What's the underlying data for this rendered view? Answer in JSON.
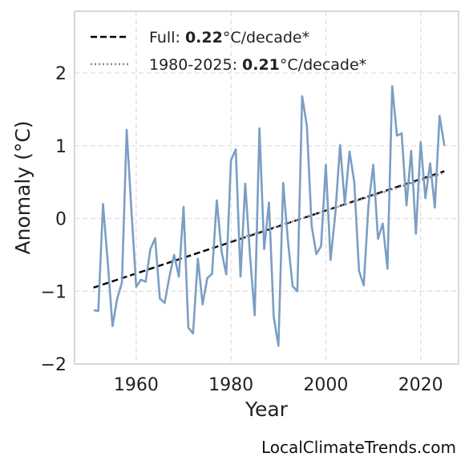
{
  "chart_data": {
    "type": "line",
    "title": "",
    "xlabel": "Year",
    "ylabel": "Anomaly (°C)",
    "xlim": [
      1947,
      2028
    ],
    "ylim": [
      -2,
      2.85
    ],
    "xticks": [
      1960,
      1980,
      2000,
      2020
    ],
    "yticks": [
      -2,
      -1,
      0,
      1,
      2
    ],
    "ytick_labels": [
      "−2",
      "−1",
      "0",
      "1",
      "2"
    ],
    "grid": true,
    "legend_position": "top-left",
    "x": [
      1951,
      1952,
      1953,
      1954,
      1955,
      1956,
      1957,
      1958,
      1959,
      1960,
      1961,
      1962,
      1963,
      1964,
      1965,
      1966,
      1967,
      1968,
      1969,
      1970,
      1971,
      1972,
      1973,
      1974,
      1975,
      1976,
      1977,
      1978,
      1979,
      1980,
      1981,
      1982,
      1983,
      1984,
      1985,
      1986,
      1987,
      1988,
      1989,
      1990,
      1991,
      1992,
      1993,
      1994,
      1995,
      1996,
      1997,
      1998,
      1999,
      2000,
      2001,
      2002,
      2003,
      2004,
      2005,
      2006,
      2007,
      2008,
      2009,
      2010,
      2011,
      2012,
      2013,
      2014,
      2015,
      2016,
      2017,
      2018,
      2019,
      2020,
      2021,
      2022,
      2023,
      2024,
      2025
    ],
    "series": [
      {
        "values": [
          -1.26,
          -1.27,
          0.2,
          -0.6,
          -1.48,
          -1.1,
          -0.88,
          1.22,
          0.1,
          -0.94,
          -0.84,
          -0.87,
          -0.42,
          -0.27,
          -1.1,
          -1.16,
          -0.8,
          -0.5,
          -0.8,
          0.16,
          -1.5,
          -1.58,
          -0.55,
          -1.18,
          -0.82,
          -0.76,
          0.25,
          -0.45,
          -0.77,
          0.8,
          0.95,
          -0.8,
          0.48,
          -0.5,
          -1.33,
          1.24,
          -0.42,
          0.22,
          -1.35,
          -1.75,
          0.49,
          -0.3,
          -0.93,
          -1.0,
          1.68,
          1.27,
          -0.1,
          -0.49,
          -0.38,
          0.74,
          -0.57,
          0.06,
          1.01,
          0.2,
          0.92,
          0.5,
          -0.72,
          -0.92,
          0.18,
          0.74,
          -0.28,
          -0.07,
          -0.69,
          1.82,
          1.14,
          1.17,
          0.18,
          0.93,
          -0.21,
          1.05,
          0.28,
          0.76,
          0.15,
          1.41,
          1.0
        ],
        "color": "#7b9ec3"
      }
    ],
    "trends": [
      {
        "label_prefix": "Full: ",
        "label_value": "0.22",
        "label_suffix": "°C/decade*",
        "style": "dashed",
        "color": "#000000",
        "x": [
          1951,
          2025
        ],
        "y": [
          -0.95,
          0.65
        ]
      },
      {
        "label_prefix": "1980-2025: ",
        "label_value": "0.21",
        "label_suffix": "°C/decade*",
        "style": "dotted",
        "color": "#8a8a8a",
        "x": [
          1980,
          2025
        ],
        "y": [
          -0.31,
          0.63
        ]
      }
    ]
  },
  "watermark": "LocalClimateTrends.com"
}
